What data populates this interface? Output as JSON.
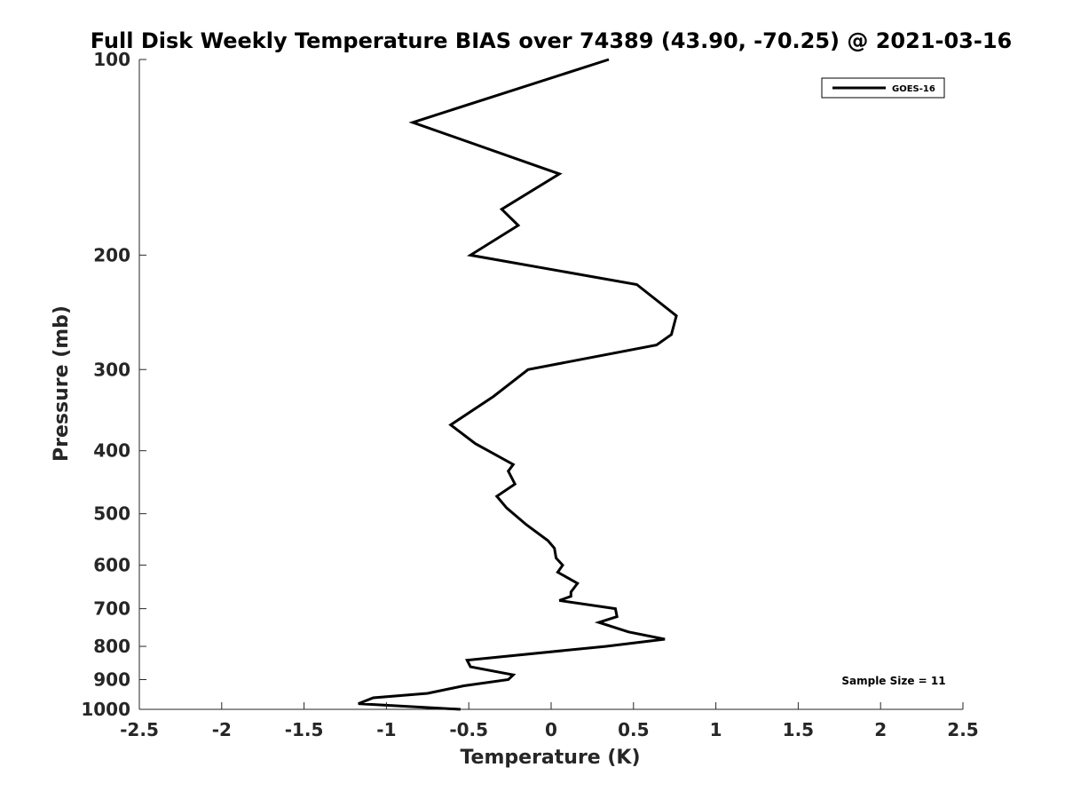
{
  "chart_data": {
    "type": "line",
    "title": "Full Disk Weekly Temperature BIAS over 74389 (43.90, -70.25) @ 2021-03-16",
    "xlabel": "Temperature (K)",
    "ylabel": "Pressure (mb)",
    "xlim": [
      -2.5,
      2.5
    ],
    "ylim": [
      1000,
      100
    ],
    "y_scale": "log",
    "y_reversed": true,
    "grid": false,
    "x_ticks": [
      "-2.5",
      "-2",
      "-1.5",
      "-1",
      "-0.5",
      "0",
      "0.5",
      "1",
      "1.5",
      "2",
      "2.5"
    ],
    "y_ticks": [
      "100",
      "200",
      "300",
      "400",
      "500",
      "600",
      "700",
      "800",
      "900",
      "1000"
    ],
    "legend": {
      "position": "top-right",
      "entries": [
        "GOES-16"
      ]
    },
    "annotation": "Sample Size = 11",
    "series": [
      {
        "name": "GOES-16",
        "color": "#000000",
        "points": [
          {
            "x": 0.35,
            "p": 100
          },
          {
            "x": -0.84,
            "p": 125
          },
          {
            "x": 0.05,
            "p": 150
          },
          {
            "x": -0.3,
            "p": 170
          },
          {
            "x": -0.2,
            "p": 180
          },
          {
            "x": -0.49,
            "p": 200
          },
          {
            "x": 0.52,
            "p": 222
          },
          {
            "x": 0.76,
            "p": 248
          },
          {
            "x": 0.73,
            "p": 265
          },
          {
            "x": 0.64,
            "p": 275
          },
          {
            "x": -0.14,
            "p": 300
          },
          {
            "x": -0.35,
            "p": 330
          },
          {
            "x": -0.61,
            "p": 365
          },
          {
            "x": -0.46,
            "p": 390
          },
          {
            "x": -0.23,
            "p": 420
          },
          {
            "x": -0.26,
            "p": 430
          },
          {
            "x": -0.22,
            "p": 450
          },
          {
            "x": -0.33,
            "p": 470
          },
          {
            "x": -0.27,
            "p": 490
          },
          {
            "x": -0.15,
            "p": 520
          },
          {
            "x": -0.02,
            "p": 550
          },
          {
            "x": 0.02,
            "p": 565
          },
          {
            "x": 0.03,
            "p": 585
          },
          {
            "x": 0.07,
            "p": 600
          },
          {
            "x": 0.04,
            "p": 615
          },
          {
            "x": 0.16,
            "p": 640
          },
          {
            "x": 0.12,
            "p": 660
          },
          {
            "x": 0.12,
            "p": 670
          },
          {
            "x": 0.05,
            "p": 680
          },
          {
            "x": 0.39,
            "p": 700
          },
          {
            "x": 0.4,
            "p": 720
          },
          {
            "x": 0.29,
            "p": 735
          },
          {
            "x": 0.47,
            "p": 760
          },
          {
            "x": 0.69,
            "p": 780
          },
          {
            "x": 0.33,
            "p": 800
          },
          {
            "x": -0.51,
            "p": 840
          },
          {
            "x": -0.49,
            "p": 860
          },
          {
            "x": -0.23,
            "p": 885
          },
          {
            "x": -0.26,
            "p": 900
          },
          {
            "x": -0.53,
            "p": 920
          },
          {
            "x": -0.75,
            "p": 945
          },
          {
            "x": -1.08,
            "p": 960
          },
          {
            "x": -1.17,
            "p": 980
          },
          {
            "x": -0.55,
            "p": 1000
          }
        ]
      }
    ]
  }
}
